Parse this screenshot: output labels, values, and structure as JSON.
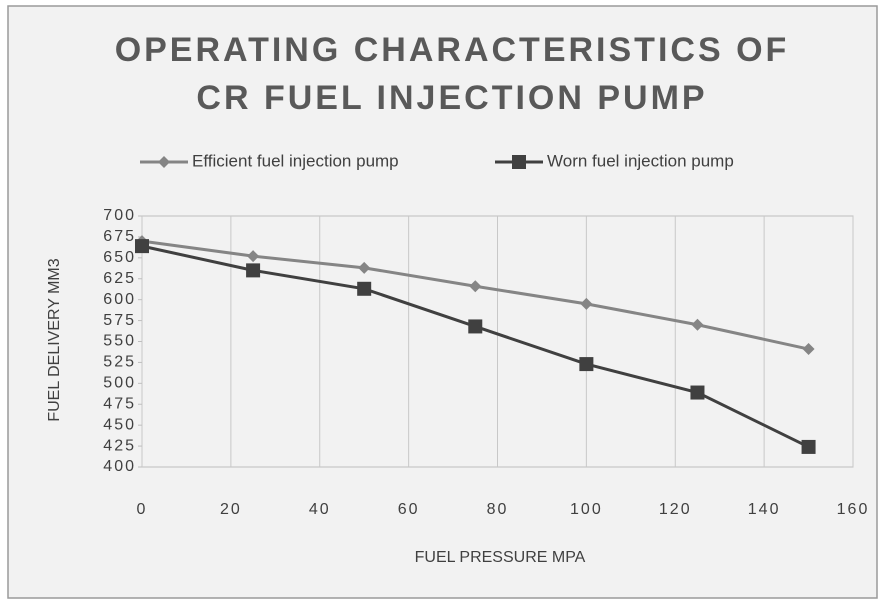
{
  "chart_data": {
    "type": "line",
    "title": [
      "OPERATING CHARACTERISTICS OF",
      "CR FUEL INJECTION PUMP"
    ],
    "x_label": "FUEL PRESSURE MPA",
    "y_label": "FUEL DELIVERY MM3",
    "x": [
      0,
      25,
      50,
      75,
      100,
      125,
      150
    ],
    "series": [
      {
        "name": "Efficient fuel injection pump",
        "color": "#858585",
        "marker": "diamond",
        "values": [
          670,
          652,
          638,
          616,
          595,
          570,
          541
        ]
      },
      {
        "name": "Worn fuel injection pump",
        "color": "#404040",
        "marker": "square",
        "values": [
          664,
          635,
          613,
          568,
          523,
          489,
          424
        ]
      }
    ],
    "xlim": [
      0,
      160
    ],
    "xticks": [
      0,
      20,
      40,
      60,
      80,
      100,
      120,
      140,
      160
    ],
    "ylim": [
      400,
      700
    ],
    "yticks": [
      400,
      425,
      450,
      475,
      500,
      525,
      550,
      575,
      600,
      625,
      650,
      675,
      700
    ],
    "xgrid": true,
    "legend": "top"
  }
}
